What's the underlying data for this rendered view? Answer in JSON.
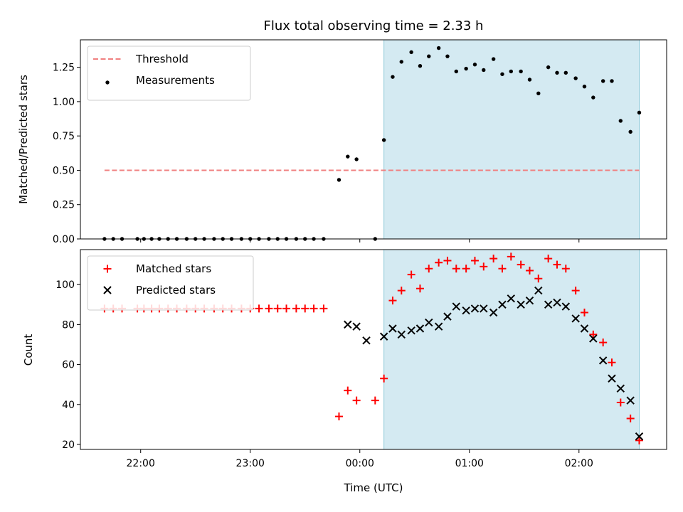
{
  "chart_data": [
    {
      "type": "scatter",
      "title": "Flux total observing time = 2.33 h",
      "ylabel": "Matched/Predicted stars",
      "xlabel": "",
      "x_unit": "hours relative to 00:00 UTC",
      "xlim": [
        -2.55,
        2.8
      ],
      "ylim": [
        0.0,
        1.45
      ],
      "yticks": [
        "0.00",
        "0.25",
        "0.50",
        "0.75",
        "1.00",
        "1.25"
      ],
      "ytick_values": [
        0.0,
        0.25,
        0.5,
        0.75,
        1.0,
        1.25
      ],
      "xtick_values": [
        -2,
        -1,
        0,
        1,
        2
      ],
      "shaded_span": [
        0.22,
        2.55
      ],
      "threshold": {
        "name": "Threshold",
        "y": 0.5,
        "x_range": [
          -2.33,
          2.55
        ],
        "color": "#f08080"
      },
      "legend": {
        "placement": "top-left",
        "entries": [
          "Threshold",
          "Measurements"
        ]
      },
      "series": [
        {
          "name": "Measurements",
          "color": "#000000",
          "marker": "dot",
          "points": [
            [
              -2.33,
              0.0
            ],
            [
              -2.25,
              0.0
            ],
            [
              -2.17,
              0.0
            ],
            [
              -2.03,
              0.0
            ],
            [
              -1.97,
              0.0
            ],
            [
              -1.9,
              0.0
            ],
            [
              -1.83,
              0.0
            ],
            [
              -1.75,
              0.0
            ],
            [
              -1.67,
              0.0
            ],
            [
              -1.58,
              0.0
            ],
            [
              -1.5,
              0.0
            ],
            [
              -1.42,
              0.0
            ],
            [
              -1.33,
              0.0
            ],
            [
              -1.25,
              0.0
            ],
            [
              -1.17,
              0.0
            ],
            [
              -1.08,
              0.0
            ],
            [
              -1.0,
              0.0
            ],
            [
              -0.92,
              0.0
            ],
            [
              -0.83,
              0.0
            ],
            [
              -0.75,
              0.0
            ],
            [
              -0.67,
              0.0
            ],
            [
              -0.58,
              0.0
            ],
            [
              -0.5,
              0.0
            ],
            [
              -0.42,
              0.0
            ],
            [
              -0.33,
              0.0
            ],
            [
              -0.19,
              0.43
            ],
            [
              -0.11,
              0.6
            ],
            [
              -0.03,
              0.58
            ],
            [
              0.14,
              0.0
            ],
            [
              0.22,
              0.72
            ],
            [
              0.3,
              1.18
            ],
            [
              0.38,
              1.29
            ],
            [
              0.47,
              1.36
            ],
            [
              0.55,
              1.26
            ],
            [
              0.63,
              1.33
            ],
            [
              0.72,
              1.39
            ],
            [
              0.8,
              1.33
            ],
            [
              0.88,
              1.22
            ],
            [
              0.97,
              1.24
            ],
            [
              1.05,
              1.27
            ],
            [
              1.13,
              1.23
            ],
            [
              1.22,
              1.31
            ],
            [
              1.3,
              1.2
            ],
            [
              1.38,
              1.22
            ],
            [
              1.47,
              1.22
            ],
            [
              1.55,
              1.16
            ],
            [
              1.63,
              1.06
            ],
            [
              1.72,
              1.25
            ],
            [
              1.8,
              1.21
            ],
            [
              1.88,
              1.21
            ],
            [
              1.97,
              1.17
            ],
            [
              2.05,
              1.11
            ],
            [
              2.13,
              1.03
            ],
            [
              2.22,
              1.15
            ],
            [
              2.3,
              1.15
            ],
            [
              2.38,
              0.86
            ],
            [
              2.47,
              0.78
            ],
            [
              2.55,
              0.92
            ]
          ]
        }
      ]
    },
    {
      "type": "scatter",
      "title": "",
      "xlabel": "Time (UTC)",
      "ylabel": "Count",
      "x_unit": "hours relative to 00:00 UTC",
      "xlim": [
        -2.55,
        2.8
      ],
      "ylim": [
        17.5,
        117.5
      ],
      "yticks": [
        "20",
        "40",
        "60",
        "80",
        "100"
      ],
      "ytick_values": [
        20,
        40,
        60,
        80,
        100
      ],
      "xticks": [
        "22:00",
        "23:00",
        "00:00",
        "01:00",
        "02:00"
      ],
      "xtick_values": [
        -2,
        -1,
        0,
        1,
        2
      ],
      "shaded_span": [
        0.22,
        2.55
      ],
      "legend": {
        "placement": "top-left",
        "entries": [
          "Matched stars",
          "Predicted stars"
        ]
      },
      "series": [
        {
          "name": "Matched stars",
          "color": "#ff0000",
          "marker": "plus",
          "points": [
            [
              -2.33,
              88
            ],
            [
              -2.25,
              88
            ],
            [
              -2.17,
              88
            ],
            [
              -2.03,
              88
            ],
            [
              -1.97,
              88
            ],
            [
              -1.9,
              88
            ],
            [
              -1.83,
              88
            ],
            [
              -1.75,
              88
            ],
            [
              -1.67,
              88
            ],
            [
              -1.58,
              88
            ],
            [
              -1.5,
              88
            ],
            [
              -1.42,
              88
            ],
            [
              -1.33,
              88
            ],
            [
              -1.25,
              88
            ],
            [
              -1.17,
              88
            ],
            [
              -1.08,
              88
            ],
            [
              -1.0,
              88
            ],
            [
              -0.92,
              88
            ],
            [
              -0.83,
              88
            ],
            [
              -0.75,
              88
            ],
            [
              -0.67,
              88
            ],
            [
              -0.58,
              88
            ],
            [
              -0.5,
              88
            ],
            [
              -0.42,
              88
            ],
            [
              -0.33,
              88
            ],
            [
              -0.19,
              34
            ],
            [
              -0.11,
              47
            ],
            [
              -0.03,
              42
            ],
            [
              0.14,
              42
            ],
            [
              0.22,
              53
            ],
            [
              0.3,
              92
            ],
            [
              0.38,
              97
            ],
            [
              0.47,
              105
            ],
            [
              0.55,
              98
            ],
            [
              0.63,
              108
            ],
            [
              0.72,
              111
            ],
            [
              0.8,
              112
            ],
            [
              0.88,
              108
            ],
            [
              0.97,
              108
            ],
            [
              1.05,
              112
            ],
            [
              1.13,
              109
            ],
            [
              1.22,
              113
            ],
            [
              1.3,
              108
            ],
            [
              1.38,
              114
            ],
            [
              1.47,
              110
            ],
            [
              1.55,
              107
            ],
            [
              1.63,
              103
            ],
            [
              1.72,
              113
            ],
            [
              1.8,
              110
            ],
            [
              1.88,
              108
            ],
            [
              1.97,
              97
            ],
            [
              2.05,
              86
            ],
            [
              2.13,
              75
            ],
            [
              2.22,
              71
            ],
            [
              2.3,
              61
            ],
            [
              2.38,
              41
            ],
            [
              2.47,
              33
            ],
            [
              2.55,
              22
            ]
          ]
        },
        {
          "name": "Predicted stars",
          "color": "#000000",
          "marker": "cross",
          "points": [
            [
              -0.11,
              80
            ],
            [
              -0.03,
              79
            ],
            [
              0.06,
              72
            ],
            [
              0.22,
              74
            ],
            [
              0.3,
              78
            ],
            [
              0.38,
              75
            ],
            [
              0.47,
              77
            ],
            [
              0.55,
              78
            ],
            [
              0.63,
              81
            ],
            [
              0.72,
              79
            ],
            [
              0.8,
              84
            ],
            [
              0.88,
              89
            ],
            [
              0.97,
              87
            ],
            [
              1.05,
              88
            ],
            [
              1.13,
              88
            ],
            [
              1.22,
              86
            ],
            [
              1.3,
              90
            ],
            [
              1.38,
              93
            ],
            [
              1.47,
              90
            ],
            [
              1.55,
              92
            ],
            [
              1.63,
              97
            ],
            [
              1.72,
              90
            ],
            [
              1.8,
              91
            ],
            [
              1.88,
              89
            ],
            [
              1.97,
              83
            ],
            [
              2.05,
              78
            ],
            [
              2.13,
              73
            ],
            [
              2.22,
              62
            ],
            [
              2.3,
              53
            ],
            [
              2.38,
              48
            ],
            [
              2.47,
              42
            ],
            [
              2.55,
              24
            ]
          ]
        }
      ]
    }
  ]
}
